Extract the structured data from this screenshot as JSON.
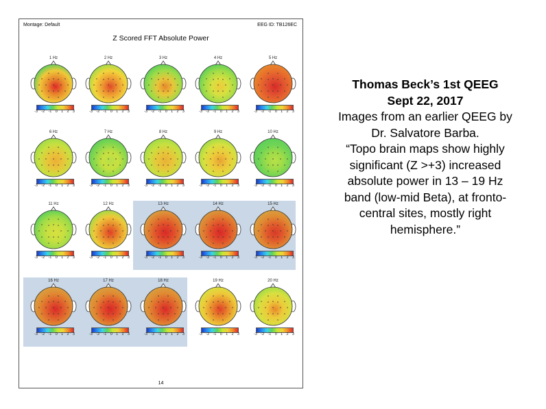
{
  "report": {
    "montage": "Montage:  Default",
    "eeg_id": "EEG ID:   TB126EC",
    "title": "Z Scored FFT Absolute Power",
    "page_number": "14",
    "colorbar_ticks": [
      "-3",
      "-2",
      "-1",
      "0",
      "1",
      "2",
      "3"
    ],
    "maps": [
      {
        "label": "1 Hz",
        "colors": [
          "#5ccf5a",
          "#f0c93a",
          "#e8882c",
          "#e02828"
        ]
      },
      {
        "label": "2 Hz",
        "colors": [
          "#9fdc48",
          "#f2d53c",
          "#ee9a32",
          "#e04a28"
        ]
      },
      {
        "label": "3 Hz",
        "colors": [
          "#5ccf5a",
          "#9fdc48",
          "#e8c63a",
          "#e8882c"
        ]
      },
      {
        "label": "4 Hz",
        "colors": [
          "#5ccf5a",
          "#9fdc48",
          "#d8e040",
          "#eecb3a"
        ]
      },
      {
        "label": "5 Hz",
        "colors": [
          "#e8882c",
          "#e8702c",
          "#e05030",
          "#d82a28"
        ]
      },
      {
        "label": "6 Hz",
        "colors": [
          "#9fdc48",
          "#c8e040",
          "#e8c63a",
          "#ecb036"
        ]
      },
      {
        "label": "7 Hz",
        "colors": [
          "#5ccf5a",
          "#8bd84c",
          "#c8e040",
          "#b8e048"
        ]
      },
      {
        "label": "8 Hz",
        "colors": [
          "#9fdc48",
          "#c8e040",
          "#e8c63a",
          "#e8b236"
        ]
      },
      {
        "label": "9 Hz",
        "colors": [
          "#9fdc48",
          "#d8e040",
          "#eec93a",
          "#e8a234"
        ]
      },
      {
        "label": "10 Hz",
        "colors": [
          "#5ccf5a",
          "#6fd456",
          "#9fdc48",
          "#b8e048"
        ]
      },
      {
        "label": "11 Hz",
        "colors": [
          "#5ccf5a",
          "#9fdc48",
          "#c8e040",
          "#d8e040"
        ]
      },
      {
        "label": "12 Hz",
        "colors": [
          "#9fdc48",
          "#eec93a",
          "#e8882c",
          "#e04028"
        ]
      },
      {
        "label": "13 Hz",
        "colors": [
          "#d8a040",
          "#e07a30",
          "#e04a2a",
          "#d82a28"
        ]
      },
      {
        "label": "14 Hz",
        "colors": [
          "#d89a3e",
          "#e07a30",
          "#e04a2a",
          "#d82828"
        ]
      },
      {
        "label": "15 Hz",
        "colors": [
          "#d8a040",
          "#e08a32",
          "#e05a2c",
          "#d83a28"
        ]
      },
      {
        "label": "16 Hz",
        "colors": [
          "#d8a040",
          "#e08a32",
          "#e05a2c",
          "#d82a28"
        ]
      },
      {
        "label": "17 Hz",
        "colors": [
          "#d8a040",
          "#e08a32",
          "#e0502a",
          "#d82828"
        ]
      },
      {
        "label": "18 Hz",
        "colors": [
          "#d8a040",
          "#e08a32",
          "#e05a2c",
          "#d82a28"
        ]
      },
      {
        "label": "19 Hz",
        "colors": [
          "#d8e040",
          "#eec93a",
          "#e8882c",
          "#e04028"
        ]
      },
      {
        "label": "20 Hz",
        "colors": [
          "#9fdc48",
          "#d8e040",
          "#eec93a",
          "#e8882c"
        ]
      }
    ]
  },
  "caption": {
    "line1": "Thomas Beck’s 1st QEEG",
    "line2": "Sept 22, 2017",
    "line3": "Images from an earlier QEEG by",
    "line4": "Dr. Salvatore Barba.",
    "line5": "“Topo brain maps show highly",
    "line6": "significant (Z >+3) increased",
    "line7": "absolute power in 13 – 19 Hz",
    "line8": "band (low-mid Beta), at fronto-",
    "line9": "central sites, mostly right",
    "line10": "hemisphere.”"
  }
}
